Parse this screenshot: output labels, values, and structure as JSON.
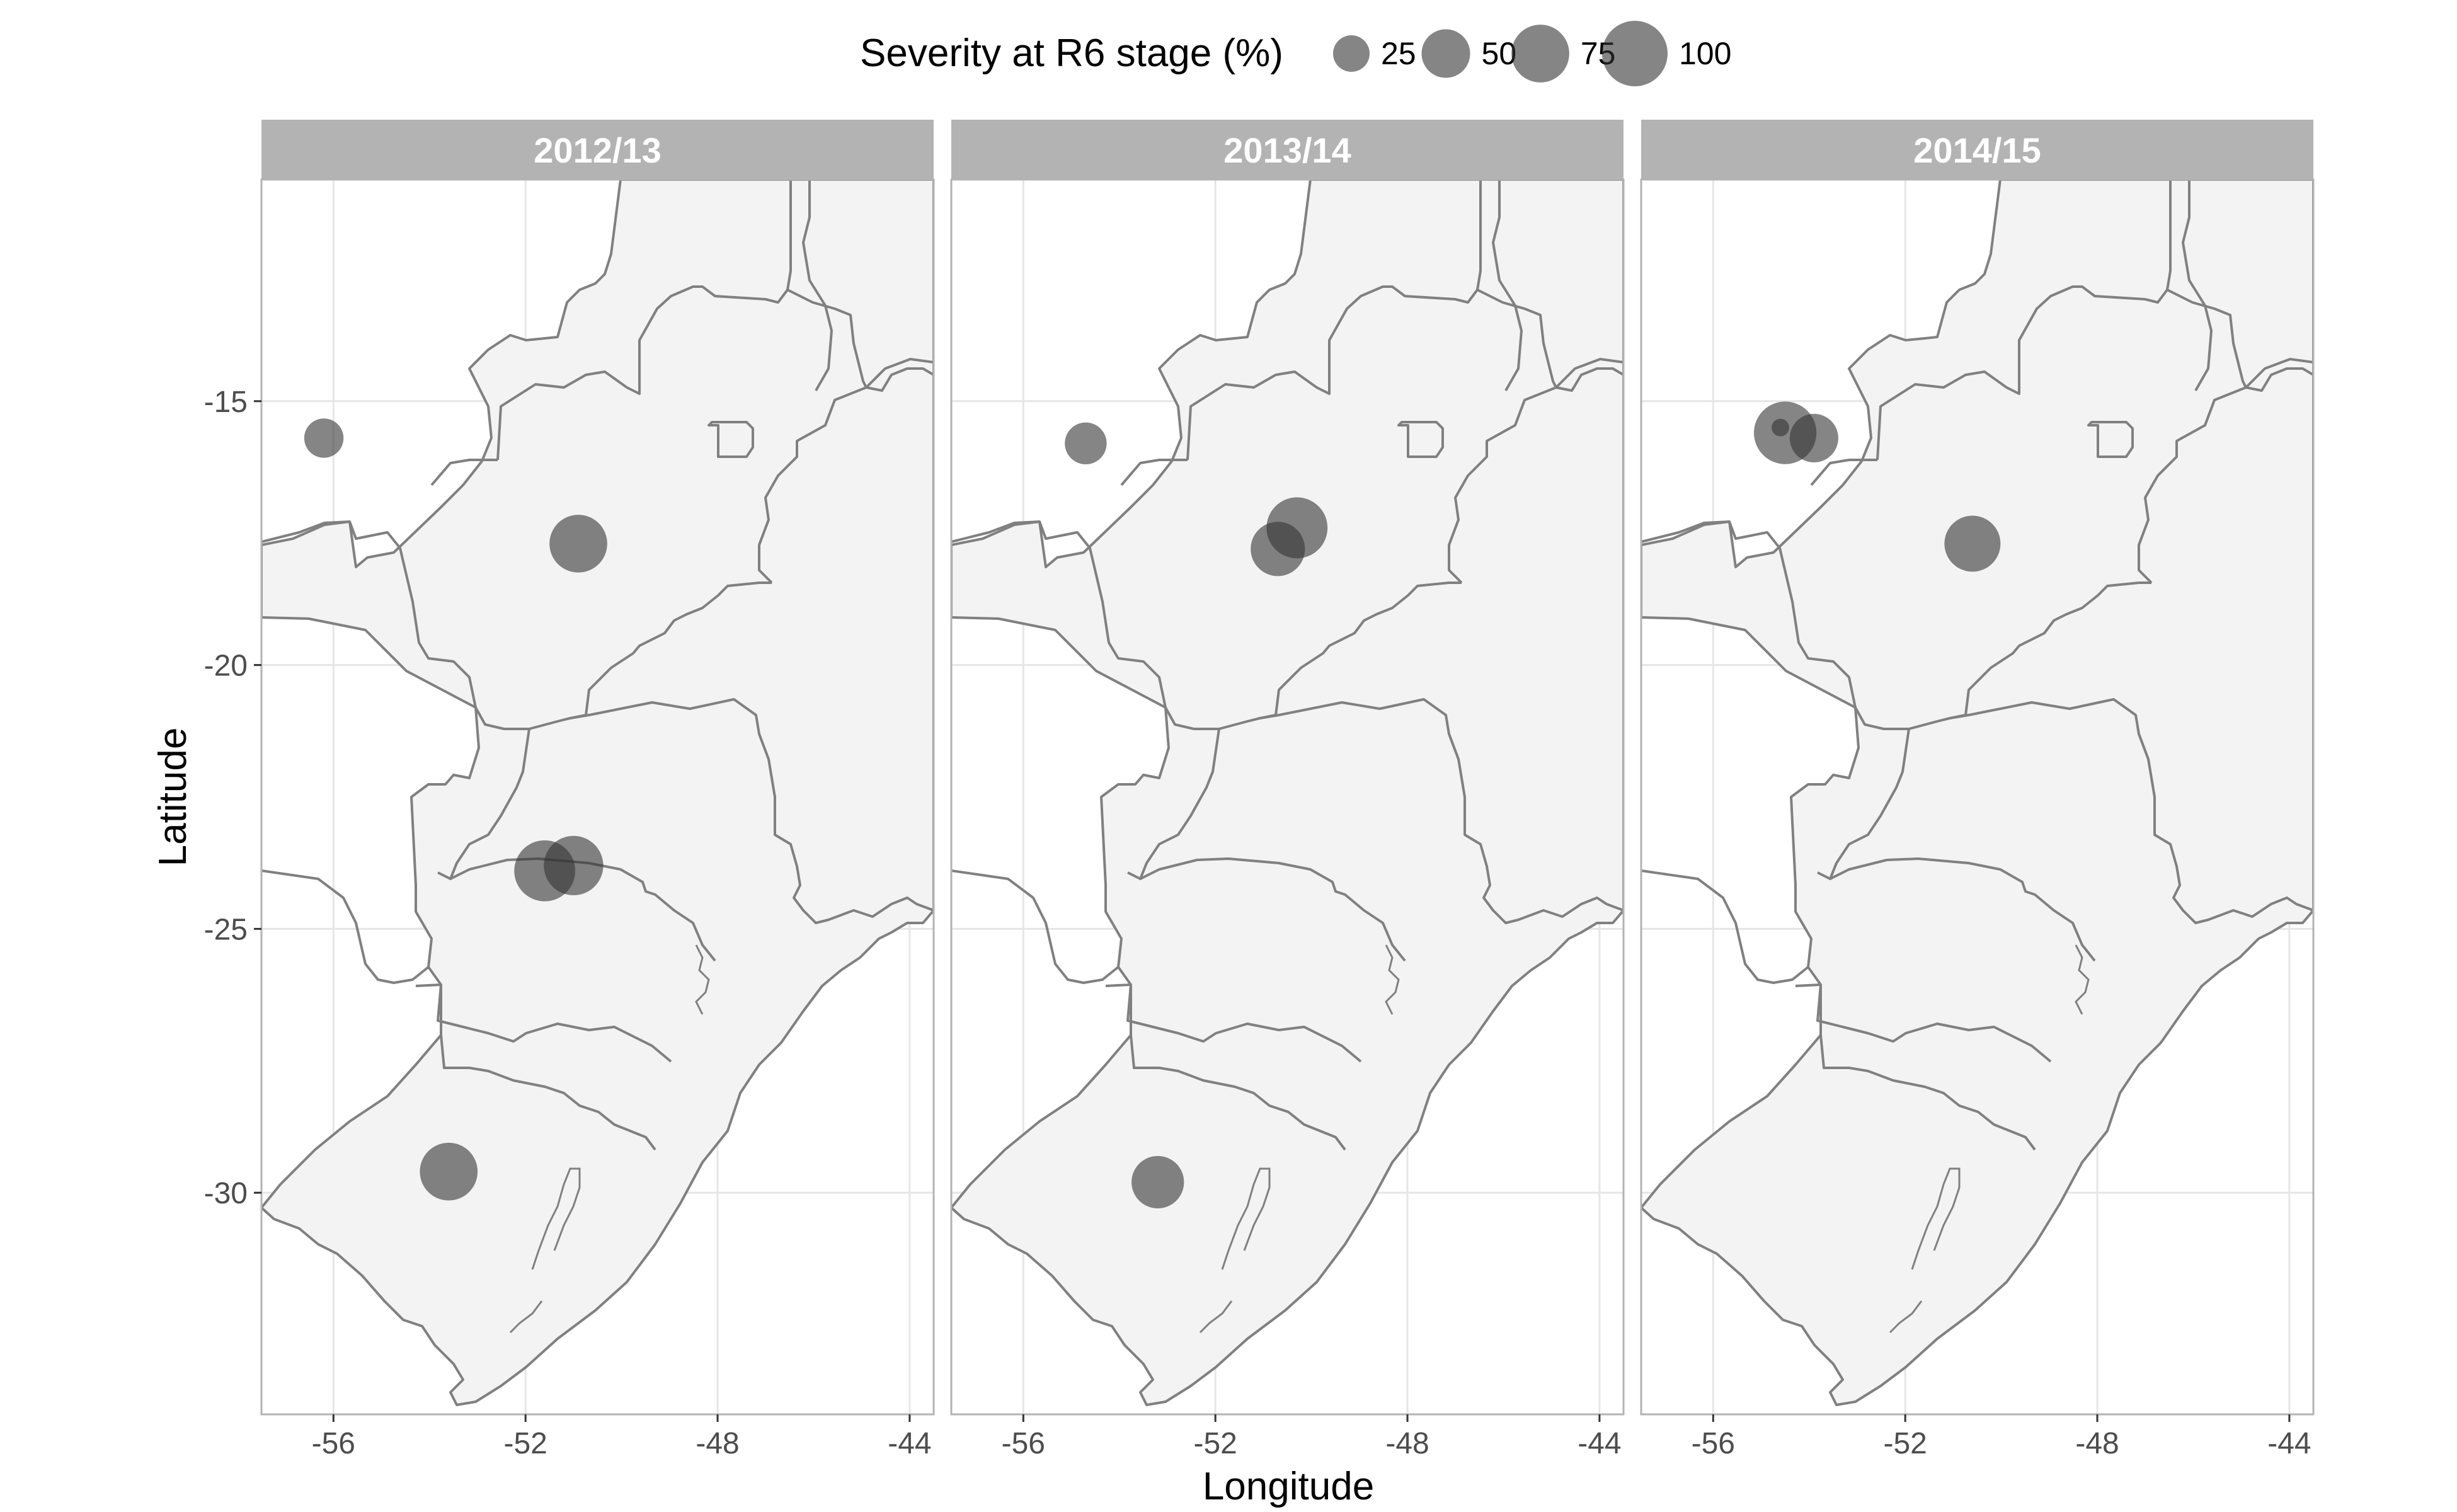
{
  "legend": {
    "title": "Severity at R6 stage (%)",
    "breaks": [
      25,
      50,
      75,
      100
    ],
    "labels": [
      "25",
      "50",
      "75",
      "100"
    ]
  },
  "axes": {
    "x_title": "Longitude",
    "y_title": "Latitude",
    "x_ticks": [
      -56,
      -52,
      -48,
      -44
    ],
    "x_tick_labels": [
      "-56",
      "-52",
      "-48",
      "-44"
    ],
    "y_ticks": [
      -15,
      -20,
      -25,
      -30
    ],
    "y_tick_labels": [
      "-15",
      "-20",
      "-25",
      "-30"
    ],
    "x_range": [
      -57.5,
      -43.5
    ],
    "y_range": [
      -34.2,
      -10.8
    ]
  },
  "colors": {
    "point": "#333333",
    "land_fill": "#f3f3f3",
    "border": "#808080",
    "strip": "#b3b3b3",
    "grid": "#e6e6e6"
  },
  "chart_data": {
    "type": "scatter",
    "x_label": "Longitude",
    "y_label": "Latitude",
    "size_variable": "Severity at R6 stage (%)",
    "panels": [
      {
        "label": "2012/13",
        "points": [
          {
            "lon": -56.2,
            "lat": -15.7,
            "severity": 30
          },
          {
            "lon": -50.9,
            "lat": -17.7,
            "severity": 75
          },
          {
            "lon": -51.6,
            "lat": -23.9,
            "severity": 85
          },
          {
            "lon": -51.0,
            "lat": -23.8,
            "severity": 80
          },
          {
            "lon": -53.6,
            "lat": -29.6,
            "severity": 75
          }
        ]
      },
      {
        "label": "2013/14",
        "points": [
          {
            "lon": -54.7,
            "lat": -15.8,
            "severity": 35
          },
          {
            "lon": -50.3,
            "lat": -17.4,
            "severity": 85
          },
          {
            "lon": -50.7,
            "lat": -17.8,
            "severity": 65
          },
          {
            "lon": -53.2,
            "lat": -29.8,
            "severity": 60
          }
        ]
      },
      {
        "label": "2014/15",
        "points": [
          {
            "lon": -54.5,
            "lat": -15.6,
            "severity": 90
          },
          {
            "lon": -54.6,
            "lat": -15.5,
            "severity": 3
          },
          {
            "lon": -53.9,
            "lat": -15.7,
            "severity": 50
          },
          {
            "lon": -50.6,
            "lat": -17.7,
            "severity": 70
          }
        ]
      }
    ]
  }
}
